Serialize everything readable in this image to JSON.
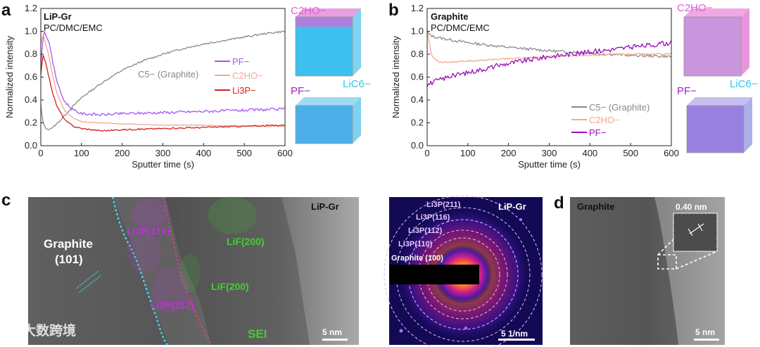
{
  "panels": {
    "a": {
      "letter": "a",
      "sample": "LiP-Gr",
      "electrolyte": "PC/DMC/EMC"
    },
    "b": {
      "letter": "b",
      "sample": "Graphite",
      "electrolyte": "PC/DMC/EMC"
    },
    "c": {
      "letter": "c",
      "sample": "LiP-Gr",
      "scale": "5 nm",
      "saed_sample": "LiP-Gr",
      "saed_scale": "5 1/nm",
      "graphite_label": "Graphite",
      "graphite_plane": "(101)",
      "sei_label": "SEI",
      "li3p_110": "Li3P(110)",
      "li3p_112": "Li3P(112)",
      "lif_top": "LiF(200)",
      "lif_mid": "LiF(200)",
      "rings": [
        "Li3P(211)",
        "Li3P(116)",
        "Li3P(112)",
        "Li3P(110)",
        "Graphite (100)"
      ]
    },
    "d": {
      "letter": "d",
      "sample": "Graphite",
      "scale": "5 nm",
      "spacing": "0.40 nm"
    }
  },
  "tof_labels": {
    "c2ho": "C2HO−",
    "lic6": "LiC6−",
    "pf": "PF−"
  },
  "watermark": "大数跨境",
  "colors": {
    "graphite": "#8a8a8a",
    "pf_a": "#a855f7",
    "c2ho": "#f4a98f",
    "li3p": "#d42020",
    "pf_b": "#9a0fb8",
    "cyan": "#2ec4f0",
    "magenta": "#e060d0",
    "green": "#3fbf2f"
  },
  "chart_data": [
    {
      "id": "a",
      "type": "line",
      "xlabel": "Sputter time (s)",
      "ylabel": "Normalized intensity",
      "xlim": [
        0,
        600
      ],
      "ylim": [
        0,
        1.2
      ],
      "xticks": [
        0,
        100,
        200,
        300,
        400,
        500,
        600
      ],
      "yticks": [
        0.0,
        0.2,
        0.4,
        0.6,
        0.8,
        1.0,
        1.2
      ],
      "series": [
        {
          "name": "C5− (Graphite)",
          "color": "#8a8a8a",
          "noise": 0.008,
          "x": [
            0,
            5,
            15,
            30,
            50,
            70,
            100,
            150,
            200,
            250,
            300,
            350,
            400,
            450,
            500,
            550,
            600
          ],
          "y": [
            0.36,
            0.2,
            0.14,
            0.16,
            0.23,
            0.31,
            0.42,
            0.55,
            0.66,
            0.74,
            0.8,
            0.85,
            0.89,
            0.92,
            0.95,
            0.98,
            1.0
          ]
        },
        {
          "name": "PF−",
          "color": "#a855f7",
          "noise": 0.012,
          "x": [
            0,
            5,
            10,
            20,
            30,
            40,
            50,
            60,
            80,
            100,
            150,
            200,
            300,
            400,
            500,
            600
          ],
          "y": [
            0.68,
            0.95,
            1.0,
            0.9,
            0.72,
            0.56,
            0.45,
            0.38,
            0.31,
            0.28,
            0.27,
            0.28,
            0.29,
            0.3,
            0.31,
            0.32
          ]
        },
        {
          "name": "C2HO−",
          "color": "#f4a98f",
          "noise": 0.004,
          "x": [
            0,
            5,
            10,
            20,
            30,
            40,
            60,
            80,
            100,
            150,
            200,
            300,
            400,
            500,
            600
          ],
          "y": [
            0.88,
            0.98,
            0.92,
            0.78,
            0.6,
            0.45,
            0.3,
            0.24,
            0.21,
            0.2,
            0.19,
            0.18,
            0.18,
            0.17,
            0.17
          ]
        },
        {
          "name": "Li3P−",
          "color": "#d42020",
          "noise": 0.006,
          "x": [
            0,
            5,
            10,
            20,
            30,
            40,
            60,
            80,
            100,
            150,
            200,
            300,
            400,
            500,
            600
          ],
          "y": [
            0.62,
            0.8,
            0.75,
            0.6,
            0.45,
            0.34,
            0.22,
            0.17,
            0.15,
            0.13,
            0.14,
            0.15,
            0.16,
            0.17,
            0.18
          ]
        }
      ]
    },
    {
      "id": "b",
      "type": "line",
      "xlabel": "Sputter time (s)",
      "ylabel": "Normalized intensity",
      "xlim": [
        0,
        600
      ],
      "ylim": [
        0,
        1.2
      ],
      "xticks": [
        0,
        100,
        200,
        300,
        400,
        500,
        600
      ],
      "yticks": [
        0.0,
        0.2,
        0.4,
        0.6,
        0.8,
        1.0,
        1.2
      ],
      "series": [
        {
          "name": "C5− (Graphite)",
          "color": "#8a8a8a",
          "noise": 0.012,
          "x": [
            0,
            5,
            20,
            50,
            100,
            200,
            300,
            400,
            500,
            600
          ],
          "y": [
            1.0,
            0.97,
            0.95,
            0.93,
            0.9,
            0.86,
            0.83,
            0.81,
            0.79,
            0.78
          ]
        },
        {
          "name": "C2HO−",
          "color": "#f4a98f",
          "noise": 0.006,
          "x": [
            0,
            5,
            10,
            20,
            30,
            50,
            100,
            200,
            300,
            400,
            500,
            600
          ],
          "y": [
            1.0,
            0.92,
            0.8,
            0.75,
            0.73,
            0.73,
            0.74,
            0.76,
            0.78,
            0.79,
            0.8,
            0.8
          ]
        },
        {
          "name": "PF−",
          "color": "#9a0fb8",
          "noise": 0.022,
          "x": [
            0,
            10,
            50,
            100,
            150,
            200,
            250,
            300,
            350,
            400,
            450,
            500,
            550,
            600
          ],
          "y": [
            0.53,
            0.55,
            0.6,
            0.64,
            0.68,
            0.72,
            0.75,
            0.78,
            0.8,
            0.82,
            0.84,
            0.86,
            0.88,
            0.9
          ]
        }
      ]
    }
  ]
}
